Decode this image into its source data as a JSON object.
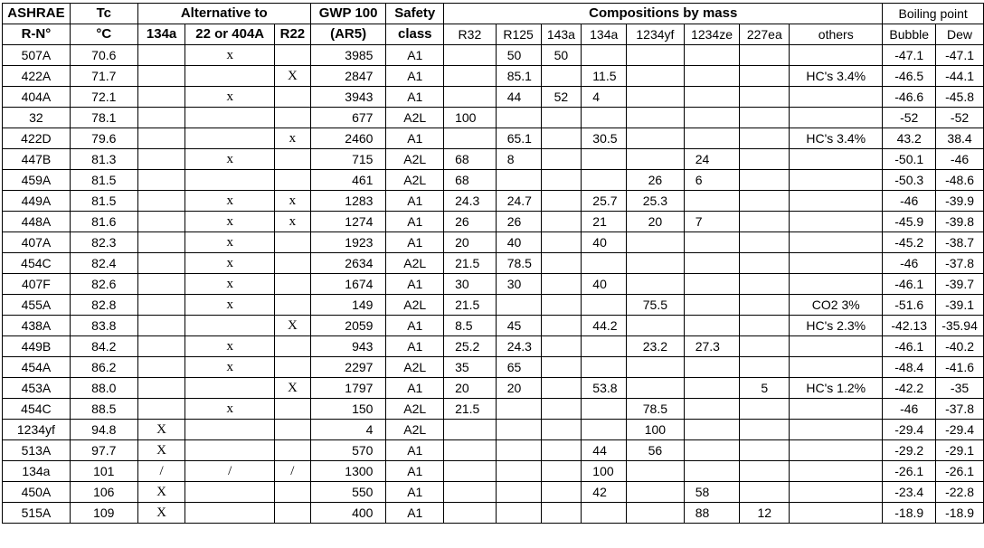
{
  "header1": {
    "ashrae": "ASHRAE",
    "tc": "Tc",
    "alt": "Alternative to",
    "gwp": "GWP 100",
    "safety": "Safety",
    "comp": "Compositions by mass",
    "boiling": "Boiling point"
  },
  "header2": {
    "rn": "R-N°",
    "unit": "°C",
    "a134a": "134a",
    "a22": "22 or 404A",
    "r22": "R22",
    "ar5": "(AR5)",
    "class": "class",
    "r32": "R32",
    "r125": "R125",
    "r143a": "143a",
    "r134a": "134a",
    "r1234yf": "1234yf",
    "r1234ze": "1234ze",
    "r227ea": "227ea",
    "others": "others",
    "bubble": "Bubble",
    "dew": "Dew"
  },
  "rows": [
    {
      "r": "507A",
      "tc": "70.6",
      "a1": "",
      "a2": "x",
      "a3": "",
      "gwp": "3985",
      "sc": "A1",
      "c": [
        "",
        "50",
        "50",
        "",
        "",
        "",
        "",
        ""
      ],
      "bub": "-47.1",
      "dew": "-47.1"
    },
    {
      "r": "422A",
      "tc": "71.7",
      "a1": "",
      "a2": "",
      "a3": "X",
      "gwp": "2847",
      "sc": "A1",
      "c": [
        "",
        "85.1",
        "",
        "11.5",
        "",
        "",
        "",
        "HC's 3.4%"
      ],
      "bub": "-46.5",
      "dew": "-44.1"
    },
    {
      "r": "404A",
      "tc": "72.1",
      "a1": "",
      "a2": "x",
      "a3": "",
      "gwp": "3943",
      "sc": "A1",
      "c": [
        "",
        "44",
        "52",
        "4",
        "",
        "",
        "",
        ""
      ],
      "bub": "-46.6",
      "dew": "-45.8"
    },
    {
      "r": "32",
      "tc": "78.1",
      "a1": "",
      "a2": "",
      "a3": "",
      "gwp": "677",
      "sc": "A2L",
      "c": [
        "100",
        "",
        "",
        "",
        "",
        "",
        "",
        ""
      ],
      "bub": "-52",
      "dew": "-52"
    },
    {
      "r": "422D",
      "tc": "79.6",
      "a1": "",
      "a2": "",
      "a3": "x",
      "gwp": "2460",
      "sc": "A1",
      "c": [
        "",
        "65.1",
        "",
        "30.5",
        "",
        "",
        "",
        "HC's 3.4%"
      ],
      "bub": "43.2",
      "dew": "38.4"
    },
    {
      "r": "447B",
      "tc": "81.3",
      "a1": "",
      "a2": "x",
      "a3": "",
      "gwp": "715",
      "sc": "A2L",
      "c": [
        "68",
        "8",
        "",
        "",
        "",
        "24",
        "",
        ""
      ],
      "bub": "-50.1",
      "dew": "-46"
    },
    {
      "r": "459A",
      "tc": "81.5",
      "a1": "",
      "a2": "",
      "a3": "",
      "gwp": "461",
      "sc": "A2L",
      "c": [
        "68",
        "",
        "",
        "",
        "26",
        "6",
        "",
        ""
      ],
      "bub": "-50.3",
      "dew": "-48.6"
    },
    {
      "r": "449A",
      "tc": "81.5",
      "a1": "",
      "a2": "x",
      "a3": "x",
      "gwp": "1283",
      "sc": "A1",
      "c": [
        "24.3",
        "24.7",
        "",
        "25.7",
        "25.3",
        "",
        "",
        ""
      ],
      "bub": "-46",
      "dew": "-39.9"
    },
    {
      "r": "448A",
      "tc": "81.6",
      "a1": "",
      "a2": "x",
      "a3": "x",
      "gwp": "1274",
      "sc": "A1",
      "c": [
        "26",
        "26",
        "",
        "21",
        "20",
        "7",
        "",
        ""
      ],
      "bub": "-45.9",
      "dew": "-39.8"
    },
    {
      "r": "407A",
      "tc": "82.3",
      "a1": "",
      "a2": "x",
      "a3": "",
      "gwp": "1923",
      "sc": "A1",
      "c": [
        "20",
        "40",
        "",
        "40",
        "",
        "",
        "",
        ""
      ],
      "bub": "-45.2",
      "dew": "-38.7"
    },
    {
      "r": "454C",
      "tc": "82.4",
      "a1": "",
      "a2": "x",
      "a3": "",
      "gwp": "2634",
      "sc": "A2L",
      "c": [
        "21.5",
        "78.5",
        "",
        "",
        "",
        "",
        "",
        ""
      ],
      "bub": "-46",
      "dew": "-37.8"
    },
    {
      "r": "407F",
      "tc": "82.6",
      "a1": "",
      "a2": "x",
      "a3": "",
      "gwp": "1674",
      "sc": "A1",
      "c": [
        "30",
        "30",
        "",
        "40",
        "",
        "",
        "",
        ""
      ],
      "bub": "-46.1",
      "dew": "-39.7"
    },
    {
      "r": "455A",
      "tc": "82.8",
      "a1": "",
      "a2": "x",
      "a3": "",
      "gwp": "149",
      "sc": "A2L",
      "c": [
        "21.5",
        "",
        "",
        "",
        "75.5",
        "",
        "",
        "CO2 3%"
      ],
      "bub": "-51.6",
      "dew": "-39.1"
    },
    {
      "r": "438A",
      "tc": "83.8",
      "a1": "",
      "a2": "",
      "a3": "X",
      "gwp": "2059",
      "sc": "A1",
      "c": [
        "8.5",
        "45",
        "",
        "44.2",
        "",
        "",
        "",
        "HC's 2.3%"
      ],
      "bub": "-42.13",
      "dew": "-35.94"
    },
    {
      "r": "449B",
      "tc": "84.2",
      "a1": "",
      "a2": "x",
      "a3": "",
      "gwp": "943",
      "sc": "A1",
      "c": [
        "25.2",
        "24.3",
        "",
        "",
        "23.2",
        "27.3",
        "",
        ""
      ],
      "bub": "-46.1",
      "dew": "-40.2"
    },
    {
      "r": "454A",
      "tc": "86.2",
      "a1": "",
      "a2": "x",
      "a3": "",
      "gwp": "2297",
      "sc": "A2L",
      "c": [
        "35",
        "65",
        "",
        "",
        "",
        "",
        "",
        ""
      ],
      "bub": "-48.4",
      "dew": "-41.6"
    },
    {
      "r": "453A",
      "tc": "88.0",
      "a1": "",
      "a2": "",
      "a3": "X",
      "gwp": "1797",
      "sc": "A1",
      "c": [
        "20",
        "20",
        "",
        "53.8",
        "",
        "",
        "5",
        "HC's 1.2%"
      ],
      "bub": "-42.2",
      "dew": "-35"
    },
    {
      "r": "454C",
      "tc": "88.5",
      "a1": "",
      "a2": "x",
      "a3": "",
      "gwp": "150",
      "sc": "A2L",
      "c": [
        "21.5",
        "",
        "",
        "",
        "78.5",
        "",
        "",
        ""
      ],
      "bub": "-46",
      "dew": "-37.8"
    },
    {
      "r": "1234yf",
      "tc": "94.8",
      "a1": "X",
      "a2": "",
      "a3": "",
      "gwp": "4",
      "sc": "A2L",
      "c": [
        "",
        "",
        "",
        "",
        "100",
        "",
        "",
        ""
      ],
      "bub": "-29.4",
      "dew": "-29.4"
    },
    {
      "r": "513A",
      "tc": "97.7",
      "a1": "X",
      "a2": "",
      "a3": "",
      "gwp": "570",
      "sc": "A1",
      "c": [
        "",
        "",
        "",
        "44",
        "56",
        "",
        "",
        ""
      ],
      "bub": "-29.2",
      "dew": "-29.1"
    },
    {
      "r": "134a",
      "tc": "101",
      "a1": "/",
      "a2": "/",
      "a3": "/",
      "gwp": "1300",
      "sc": "A1",
      "c": [
        "",
        "",
        "",
        "100",
        "",
        "",
        "",
        ""
      ],
      "bub": "-26.1",
      "dew": "-26.1"
    },
    {
      "r": "450A",
      "tc": "106",
      "a1": "X",
      "a2": "",
      "a3": "",
      "gwp": "550",
      "sc": "A1",
      "c": [
        "",
        "",
        "",
        "42",
        "",
        "58",
        "",
        ""
      ],
      "bub": "-23.4",
      "dew": "-22.8"
    },
    {
      "r": "515A",
      "tc": "109",
      "a1": "X",
      "a2": "",
      "a3": "",
      "gwp": "400",
      "sc": "A1",
      "c": [
        "",
        "",
        "",
        "",
        "",
        "88",
        "12",
        ""
      ],
      "bub": "-18.9",
      "dew": "-18.9"
    }
  ]
}
